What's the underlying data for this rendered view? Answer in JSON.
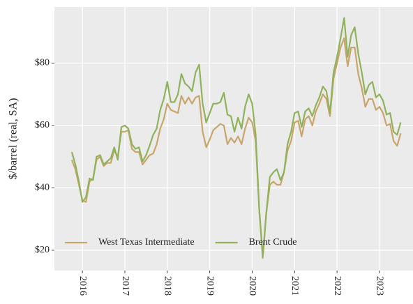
{
  "chart_data": {
    "type": "line",
    "ylabel": "$/barrel (real, SA)",
    "x": [
      2015.75,
      2015.833,
      2015.917,
      2016,
      2016.083,
      2016.167,
      2016.25,
      2016.333,
      2016.417,
      2016.5,
      2016.583,
      2016.667,
      2016.75,
      2016.833,
      2016.917,
      2017,
      2017.083,
      2017.167,
      2017.25,
      2017.333,
      2017.417,
      2017.5,
      2017.583,
      2017.667,
      2017.75,
      2017.833,
      2017.917,
      2018,
      2018.083,
      2018.167,
      2018.25,
      2018.333,
      2018.417,
      2018.5,
      2018.583,
      2018.667,
      2018.75,
      2018.833,
      2018.917,
      2019,
      2019.083,
      2019.167,
      2019.25,
      2019.333,
      2019.417,
      2019.5,
      2019.583,
      2019.667,
      2019.75,
      2019.833,
      2019.917,
      2020,
      2020.083,
      2020.167,
      2020.25,
      2020.333,
      2020.417,
      2020.5,
      2020.583,
      2020.667,
      2020.75,
      2020.833,
      2020.917,
      2021,
      2021.083,
      2021.167,
      2021.25,
      2021.333,
      2021.417,
      2021.5,
      2021.583,
      2021.667,
      2021.75,
      2021.833,
      2021.917,
      2022,
      2022.083,
      2022.167,
      2022.25,
      2022.333,
      2022.417,
      2022.5,
      2022.583,
      2022.667,
      2022.75,
      2022.833,
      2022.917,
      2023,
      2023.083,
      2023.167,
      2023.25,
      2023.333,
      2023.417,
      2023.5
    ],
    "series": [
      {
        "name": "West Texas Intermediate",
        "color": "#c9a56b",
        "values": [
          49,
          46,
          41,
          36,
          35.5,
          42,
          43,
          49,
          50,
          47,
          48,
          48,
          52,
          50,
          58,
          58,
          58.5,
          52.5,
          51.5,
          51.5,
          47.5,
          49,
          50.5,
          51,
          54,
          59,
          62,
          67,
          65,
          64.5,
          64,
          69.5,
          67,
          69,
          67,
          69,
          69.5,
          58,
          53,
          55.5,
          58.5,
          59.5,
          60.5,
          60,
          54,
          56,
          54.5,
          56.5,
          54,
          59,
          62.5,
          61,
          55,
          33,
          17.5,
          32,
          41,
          42,
          41,
          41,
          45,
          52,
          55,
          61,
          61.5,
          56.5,
          62,
          63,
          60,
          64.5,
          67,
          70,
          68.5,
          63,
          75,
          80,
          85,
          88,
          79,
          85,
          85,
          76.5,
          72,
          66,
          68.5,
          68.5,
          65,
          66,
          64,
          60,
          60.5,
          55,
          53.5,
          57.5
        ]
      },
      {
        "name": "Brent Crude",
        "color": "#8fb25a",
        "values": [
          51.5,
          47.5,
          42,
          35.5,
          37,
          43,
          42.5,
          50,
          50.5,
          47.5,
          48.5,
          49.5,
          53,
          49,
          59.5,
          60,
          59,
          54,
          52.5,
          53,
          48.5,
          50.5,
          53.5,
          57,
          59,
          65,
          68.5,
          74,
          67.5,
          67.5,
          70,
          76.5,
          73.5,
          72.5,
          71,
          77,
          79.5,
          67,
          61,
          64,
          67,
          67,
          67.5,
          70.5,
          63.5,
          63,
          58,
          62.5,
          59,
          66,
          70,
          67,
          57,
          33,
          18,
          32,
          43.5,
          45,
          46,
          42.5,
          45,
          54,
          58,
          64,
          64.5,
          59.5,
          64.5,
          65.5,
          63,
          66.5,
          69,
          72.5,
          71,
          64,
          77,
          82,
          88,
          94.5,
          82,
          89,
          91.5,
          83,
          77,
          70,
          73,
          74,
          69,
          70,
          68,
          63.5,
          64,
          58,
          57,
          61
        ]
      }
    ],
    "xlim": [
      2015.34,
      2023.79
    ],
    "xticks": [
      2016,
      2017,
      2018,
      2019,
      2020,
      2021,
      2022,
      2023
    ],
    "ylim": [
      13.5,
      98
    ],
    "yticks": [
      {
        "value": 20,
        "label": "$20"
      },
      {
        "value": 40,
        "label": "$40"
      },
      {
        "value": 60,
        "label": "$60"
      },
      {
        "value": 80,
        "label": "$80"
      }
    ],
    "grid": true,
    "legend": "lower left"
  }
}
